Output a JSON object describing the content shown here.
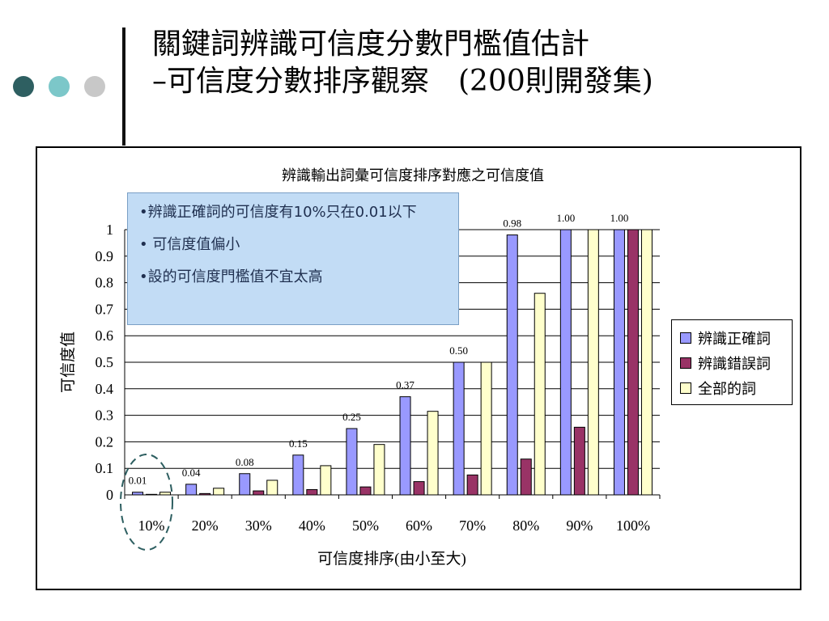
{
  "slide": {
    "title_line1": "關鍵詞辨識可信度分數門檻值估計",
    "title_line2": "–可信度分數排序觀察　(200則開發集)"
  },
  "colors": {
    "dot1": "#2e5f61",
    "dot2": "#7cc7c9",
    "dot3": "#c8c8c8",
    "note_bg": "#c2dcf5",
    "ellipse": "#2e5f61"
  },
  "note": {
    "line1": "•辨識正確詞的可信度有10%只在0.01以下",
    "line2": "• 可信度值偏小",
    "line3": "•設的可信度門檻值不宜太高"
  },
  "chart_data": {
    "type": "bar",
    "title": "辨識輸出詞彙可信度排序對應之可信度值",
    "xlabel": "可信度排序(由小至大)",
    "ylabel": "可信度值",
    "categories": [
      "10%",
      "20%",
      "30%",
      "40%",
      "50%",
      "60%",
      "70%",
      "80%",
      "90%",
      "100%"
    ],
    "ylim": [
      0,
      1
    ],
    "yticks": [
      "0",
      "0.1",
      "0.2",
      "0.3",
      "0.4",
      "0.5",
      "0.6",
      "0.7",
      "0.8",
      "0.9",
      "1"
    ],
    "grid": true,
    "legend_position": "right",
    "series": [
      {
        "name": "辨識正確詞",
        "color": "#9999ff",
        "values": [
          0.01,
          0.04,
          0.08,
          0.15,
          0.25,
          0.37,
          0.5,
          0.98,
          1.0,
          1.0
        ],
        "labels": [
          "0.01",
          "0.04",
          "0.08",
          "0.15",
          "0.25",
          "0.37",
          "0.50",
          "0.98",
          "1.00",
          "1.00"
        ]
      },
      {
        "name": "辨識錯誤詞",
        "color": "#993366",
        "values": [
          0.002,
          0.005,
          0.015,
          0.02,
          0.03,
          0.05,
          0.075,
          0.135,
          0.255,
          1.0
        ]
      },
      {
        "name": "全部的詞",
        "color": "#ffffcc",
        "values": [
          0.01,
          0.025,
          0.055,
          0.11,
          0.19,
          0.315,
          0.5,
          0.76,
          1.0,
          1.0
        ]
      }
    ]
  }
}
